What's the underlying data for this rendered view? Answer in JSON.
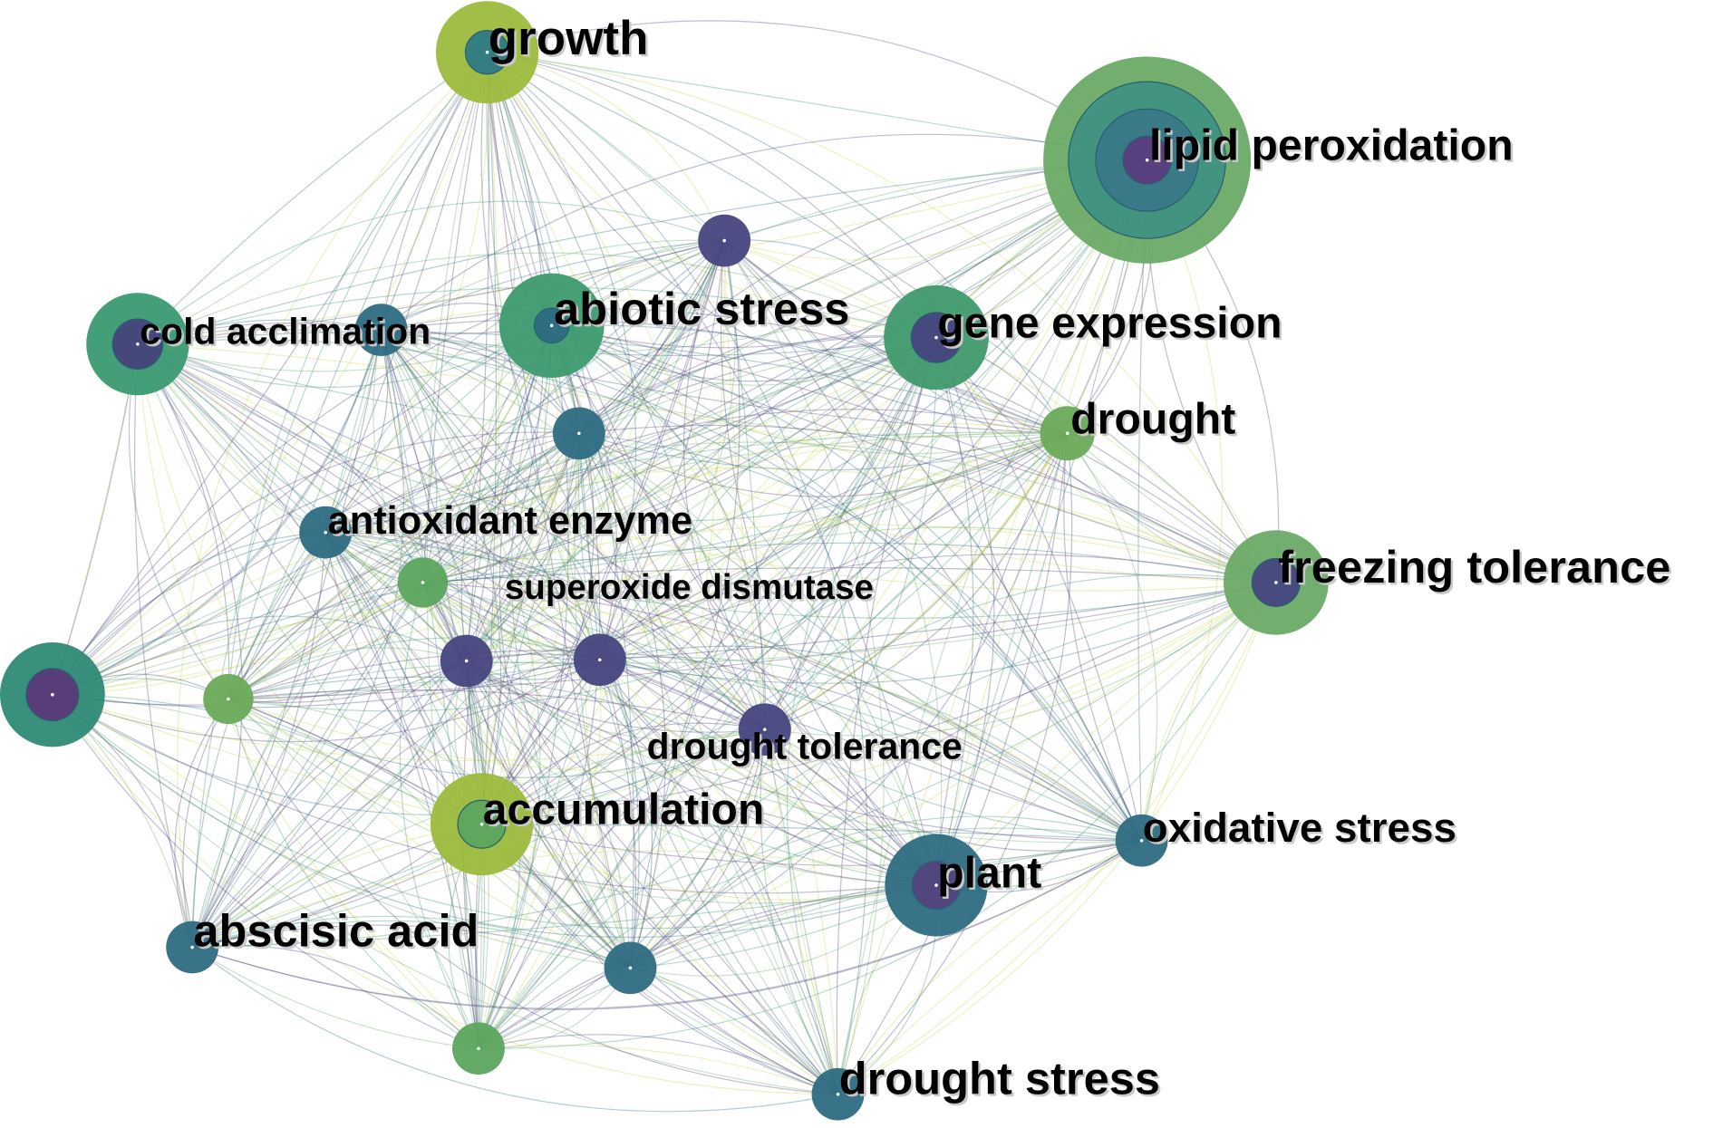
{
  "palette": {
    "purple": "#5a3c7c",
    "indigo": "#46467f",
    "teal": "#2e6b82",
    "teal_green": "#3a9277",
    "green": "#6aaa66",
    "yellow_green": "#9cba3c",
    "edge_colors": [
      "#5a3c7c",
      "#46467f",
      "#2e6b82",
      "#3a9277",
      "#6aaa66",
      "#c8d84a"
    ]
  },
  "nodes": [
    {
      "label": "growth",
      "rings": [
        "#9cba3c",
        "#2e7a86"
      ]
    },
    {
      "label": "lipid peroxidation",
      "rings": [
        "#6aaa66",
        "#3f9180",
        "#3a7888",
        "#5a3c7c"
      ]
    },
    {
      "label": "",
      "rings": [
        "#46467f"
      ]
    },
    {
      "label": "cold acclimation",
      "rings": [
        "#3a9a72",
        "#46437a"
      ]
    },
    {
      "label": "",
      "rings": [
        "#2e6b82"
      ]
    },
    {
      "label": "abiotic stress",
      "rings": [
        "#3c9a6e",
        "#2e6b82"
      ]
    },
    {
      "label": "gene expression",
      "rings": [
        "#3f9a6c",
        "#46457e"
      ]
    },
    {
      "label": "drought",
      "rings": [
        "#6aaa5a"
      ]
    },
    {
      "label": "",
      "rings": [
        "#2e6b82"
      ]
    },
    {
      "label": "antioxidant enzyme",
      "rings": [
        "#2e6b82"
      ]
    },
    {
      "label": "",
      "rings": [
        "#5ca55e"
      ]
    },
    {
      "label": "freezing tolerance",
      "rings": [
        "#6aaa66",
        "#46467f"
      ]
    },
    {
      "label": "",
      "rings": [
        "#2d8a76",
        "#5a3a78"
      ]
    },
    {
      "label": "",
      "rings": [
        "#6aaa5a"
      ]
    },
    {
      "label": "",
      "rings": [
        "#46467f"
      ]
    },
    {
      "label": "superoxide dismutase",
      "rings": [
        "#46467f"
      ]
    },
    {
      "label": "drought tolerance",
      "rings": [
        "#46467f"
      ]
    },
    {
      "label": "accumulation",
      "rings": [
        "#9cba3c",
        "#5ca55e"
      ]
    },
    {
      "label": "plant",
      "rings": [
        "#2e6b82",
        "#54437e"
      ]
    },
    {
      "label": "oxidative stress",
      "rings": [
        "#2e6b82"
      ]
    },
    {
      "label": "abscisic acid",
      "rings": [
        "#2e6b82"
      ]
    },
    {
      "label": "",
      "rings": [
        "#2e6b82"
      ]
    },
    {
      "label": "",
      "rings": [
        "#5ca55e"
      ]
    },
    {
      "label": "drought stress",
      "rings": [
        "#2e6b82"
      ]
    }
  ]
}
